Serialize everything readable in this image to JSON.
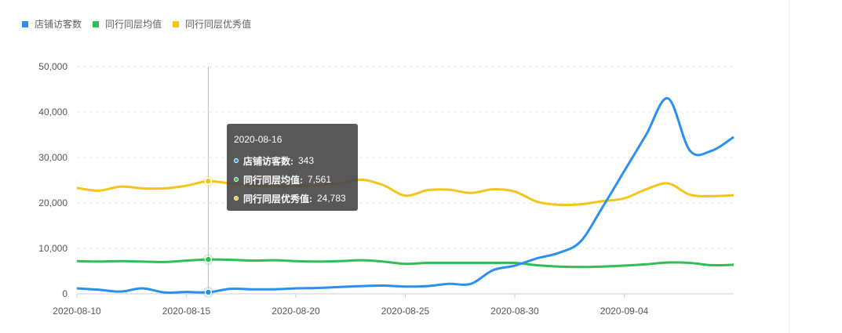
{
  "colors": {
    "visitors": "#2a8ff0",
    "avg": "#30bd55",
    "excellent": "#f5c41a"
  },
  "legend": [
    {
      "name": "店铺访客数",
      "color": "#2a8ff0"
    },
    {
      "name": "同行同层均值",
      "color": "#30bd55"
    },
    {
      "name": "同行同层优秀值",
      "color": "#f5c41a"
    }
  ],
  "tooltip": {
    "date": "2020-08-16",
    "rows": [
      {
        "label": "店铺访客数:",
        "value": "343",
        "color": "#2a8ff0"
      },
      {
        "label": "同行同层均值:",
        "value": "7,561",
        "color": "#30bd55"
      },
      {
        "label": "同行同层优秀值:",
        "value": "24,783",
        "color": "#f5c41a"
      }
    ]
  },
  "chart_data": {
    "type": "line",
    "title": "",
    "xlabel": "",
    "ylabel": "",
    "ylim": [
      0,
      50000
    ],
    "yticks": [
      "0",
      "10,000",
      "20,000",
      "30,000",
      "40,000",
      "50,000"
    ],
    "grid": "horizontal dashed",
    "legend_position": "top-left",
    "x_tick_labels": [
      "2020-08-10",
      "2020-08-15",
      "2020-08-20",
      "2020-08-25",
      "2020-08-30",
      "2020-09-04"
    ],
    "x": [
      "2020-08-10",
      "2020-08-11",
      "2020-08-12",
      "2020-08-13",
      "2020-08-14",
      "2020-08-15",
      "2020-08-16",
      "2020-08-17",
      "2020-08-18",
      "2020-08-19",
      "2020-08-20",
      "2020-08-21",
      "2020-08-22",
      "2020-08-23",
      "2020-08-24",
      "2020-08-25",
      "2020-08-26",
      "2020-08-27",
      "2020-08-28",
      "2020-08-29",
      "2020-08-30",
      "2020-08-31",
      "2020-09-01",
      "2020-09-02",
      "2020-09-03",
      "2020-09-04",
      "2020-09-05",
      "2020-09-06",
      "2020-09-07",
      "2020-09-08",
      "2020-09-09"
    ],
    "series": [
      {
        "name": "店铺访客数",
        "color": "#2a8ff0",
        "values": [
          1200,
          900,
          500,
          1200,
          300,
          400,
          343,
          1100,
          1000,
          1000,
          1200,
          1300,
          1500,
          1700,
          1800,
          1600,
          1700,
          2200,
          2200,
          5200,
          6200,
          7800,
          9000,
          11500,
          19000,
          27000,
          35000,
          43000,
          31500,
          31500,
          34500
        ]
      },
      {
        "name": "同行同层均值",
        "color": "#30bd55",
        "values": [
          7200,
          7100,
          7200,
          7100,
          7000,
          7300,
          7561,
          7500,
          7300,
          7400,
          7200,
          7100,
          7200,
          7400,
          7100,
          6600,
          6800,
          6800,
          6800,
          6800,
          6800,
          6300,
          6000,
          5900,
          6000,
          6200,
          6500,
          6900,
          6800,
          6300,
          6400
        ]
      },
      {
        "name": "同行同层优秀值",
        "color": "#f5c41a",
        "values": [
          23300,
          22700,
          23600,
          23200,
          23200,
          23800,
          24783,
          24300,
          23900,
          23700,
          23700,
          23900,
          24300,
          25100,
          23900,
          21600,
          22800,
          22900,
          22200,
          23000,
          22500,
          20300,
          19600,
          19700,
          20400,
          21000,
          23000,
          24300,
          21800,
          21500,
          21700
        ]
      }
    ],
    "highlight_index": 6
  }
}
